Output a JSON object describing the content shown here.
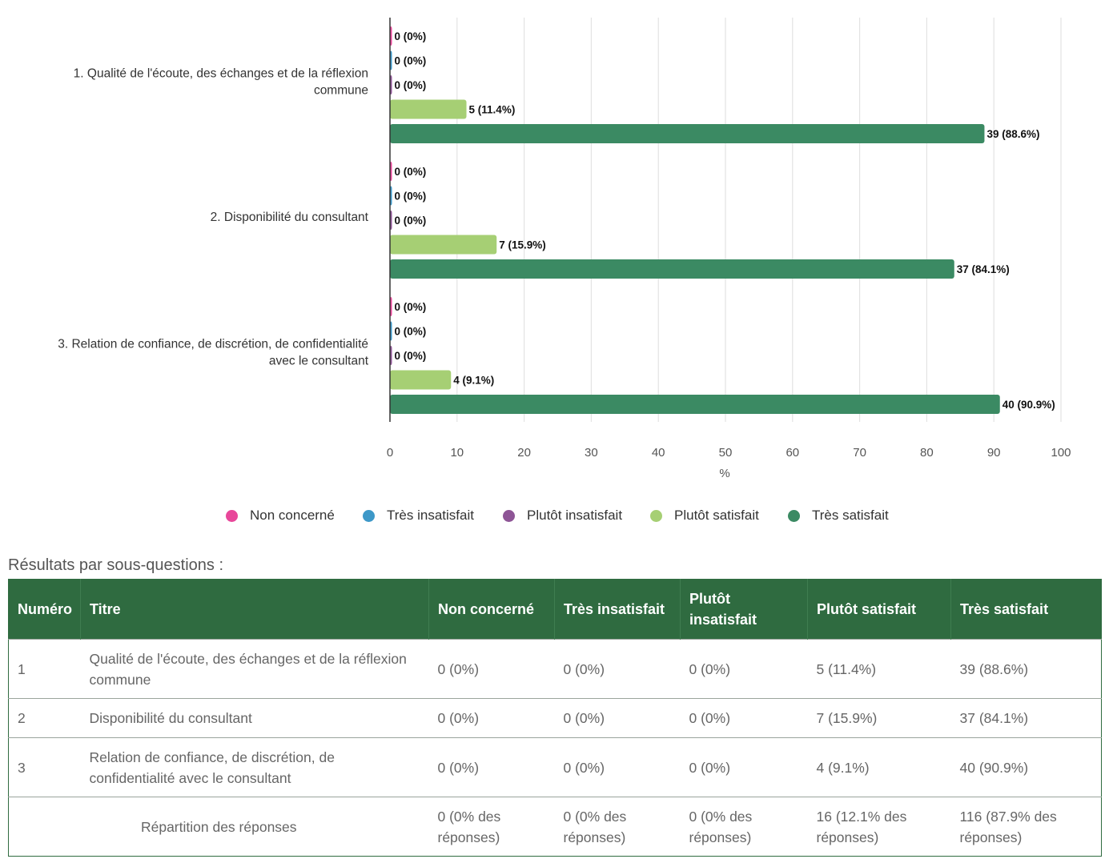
{
  "chart_data": {
    "type": "bar",
    "orientation": "horizontal",
    "categories": [
      "1. Qualité de l'écoute, des échanges et de la réflexion commune",
      "2. Disponibilité du consultant",
      "3. Relation de confiance, de discrétion, de confidentialité avec le consultant"
    ],
    "category_lines": [
      [
        "1. Qualité de l'écoute, des échanges et de la réflexion",
        "commune"
      ],
      [
        "2. Disponibilité du consultant"
      ],
      [
        "3. Relation de confiance, de discrétion, de confidentialité",
        "avec le consultant"
      ]
    ],
    "series": [
      {
        "name": "Non concerné",
        "color": "#e8479a",
        "values": [
          0,
          0,
          0
        ],
        "counts": [
          0,
          0,
          0
        ],
        "labels": [
          "0 (0%)",
          "0 (0%)",
          "0 (0%)"
        ]
      },
      {
        "name": "Très insatisfait",
        "color": "#3d98c8",
        "values": [
          0,
          0,
          0
        ],
        "counts": [
          0,
          0,
          0
        ],
        "labels": [
          "0 (0%)",
          "0 (0%)",
          "0 (0%)"
        ]
      },
      {
        "name": "Plutôt insatisfait",
        "color": "#8e5596",
        "values": [
          0,
          0,
          0
        ],
        "counts": [
          0,
          0,
          0
        ],
        "labels": [
          "0 (0%)",
          "0 (0%)",
          "0 (0%)"
        ]
      },
      {
        "name": "Plutôt satisfait",
        "color": "#a6cf74",
        "values": [
          11.4,
          15.9,
          9.1
        ],
        "counts": [
          5,
          7,
          4
        ],
        "labels": [
          "5 (11.4%)",
          "7 (15.9%)",
          "4 (9.1%)"
        ]
      },
      {
        "name": "Très satisfait",
        "color": "#3b8a63",
        "values": [
          88.6,
          84.1,
          90.9
        ],
        "counts": [
          39,
          37,
          40
        ],
        "labels": [
          "39 (88.6%)",
          "37 (84.1%)",
          "40 (90.9%)"
        ]
      }
    ],
    "xlim": [
      0,
      100
    ],
    "xticks": [
      0,
      10,
      20,
      30,
      40,
      50,
      60,
      70,
      80,
      90,
      100
    ],
    "xlabel": "%",
    "ylabel": "",
    "grid": true,
    "legend_position": "bottom"
  },
  "results": {
    "title": "Résultats par sous-questions :",
    "headers": [
      "Numéro",
      "Titre",
      "Non concerné",
      "Très insatisfait",
      "Plutôt insatisfait",
      "Plutôt satisfait",
      "Très satisfait"
    ],
    "rows": [
      [
        "1",
        "Qualité de l'écoute, des échanges et de la réflexion commune",
        "0 (0%)",
        "0 (0%)",
        "0 (0%)",
        "5 (11.4%)",
        "39 (88.6%)"
      ],
      [
        "2",
        "Disponibilité du consultant",
        "0 (0%)",
        "0 (0%)",
        "0 (0%)",
        "7 (15.9%)",
        "37 (84.1%)"
      ],
      [
        "3",
        "Relation de confiance, de discrétion, de confidentialité avec le consultant",
        "0 (0%)",
        "0 (0%)",
        "0 (0%)",
        "4 (9.1%)",
        "40 (90.9%)"
      ]
    ],
    "totals_label": "Répartition des réponses",
    "totals": [
      "0 (0% des réponses)",
      "0 (0% des réponses)",
      "0 (0% des réponses)",
      "16 (12.1% des réponses)",
      "116 (87.9% des réponses)"
    ]
  }
}
